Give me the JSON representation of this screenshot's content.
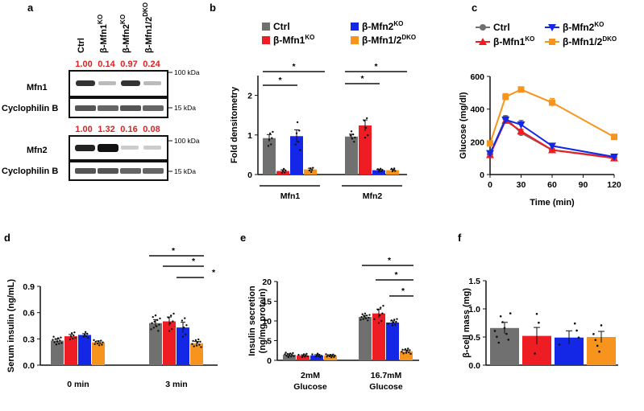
{
  "colors": {
    "ctrl": "#707070",
    "ko1": "#ee1d23",
    "ko2": "#1427e6",
    "dko": "#f7941d",
    "ratio": "#e0201e"
  },
  "legend": {
    "ctrl": "Ctrl",
    "ko1": "β-Mfn1",
    "ko1_sup": "KO",
    "ko2": "β-Mfn2",
    "ko2_sup": "KO",
    "dko": "β-Mfn1/2",
    "dko_sup": "DKO"
  },
  "panel_a": {
    "label": "a",
    "lanes": [
      {
        "text": "Ctrl",
        "sup": ""
      },
      {
        "text": "β-Mfn1",
        "sup": "KO"
      },
      {
        "text": "β-Mfn2",
        "sup": "KO"
      },
      {
        "text": "β-Mfn1/2",
        "sup": "DKO"
      }
    ],
    "mfn1_ratios": [
      "1.00",
      "0.14",
      "0.97",
      "0.24"
    ],
    "mfn2_ratios": [
      "1.00",
      "1.32",
      "0.16",
      "0.08"
    ],
    "rows": [
      "Mfn1",
      "Cyclophilin B",
      "Mfn2",
      "Cyclophilin B"
    ],
    "markers": [
      "100 kDa",
      "15 kDa",
      "100 kDa",
      "15 kDa"
    ]
  },
  "chart_data": [
    {
      "panel": "b",
      "type": "bar",
      "ylabel": "Fold densitometry",
      "ylim": [
        0,
        2.5
      ],
      "yticks": [
        "0",
        "1",
        "2"
      ],
      "groups": [
        "Mfn1",
        "Mfn2"
      ],
      "series": [
        {
          "key": "ctrl",
          "values": [
            0.92,
            0.96
          ],
          "err": [
            0.09,
            0.06
          ]
        },
        {
          "key": "ko1",
          "values": [
            0.09,
            1.24
          ],
          "err": [
            0.03,
            0.14
          ]
        },
        {
          "key": "ko2",
          "values": [
            0.97,
            0.11
          ],
          "err": [
            0.16,
            0.02
          ]
        },
        {
          "key": "dko",
          "values": [
            0.13,
            0.11
          ],
          "err": [
            0.03,
            0.02
          ]
        }
      ],
      "sig": [
        "*",
        "*",
        "*",
        "*"
      ]
    },
    {
      "panel": "c",
      "type": "line",
      "xlabel": "Time (min)",
      "ylabel": "Glucose (mg/dl)",
      "x": [
        0,
        15,
        30,
        60,
        120
      ],
      "xticks": [
        "0",
        "30",
        "60",
        "90",
        "120"
      ],
      "ylim": [
        0,
        600
      ],
      "yticks": [
        "0",
        "200",
        "400",
        "600"
      ],
      "series": [
        {
          "key": "ctrl",
          "values": [
            125,
            345,
            255,
            150,
            105
          ],
          "err": [
            8,
            15,
            12,
            8,
            8
          ]
        },
        {
          "key": "ko1",
          "values": [
            120,
            330,
            265,
            150,
            100
          ],
          "err": [
            8,
            15,
            12,
            8,
            6
          ]
        },
        {
          "key": "ko2",
          "values": [
            130,
            335,
            305,
            175,
            108
          ],
          "err": [
            8,
            18,
            25,
            15,
            8
          ]
        },
        {
          "key": "dko",
          "values": [
            190,
            475,
            520,
            440,
            230
          ],
          "err": [
            10,
            20,
            15,
            25,
            15
          ]
        }
      ]
    },
    {
      "panel": "d",
      "type": "bar",
      "ylabel": "Serum insulin (ng/mL)",
      "ylim": [
        0,
        0.9
      ],
      "yticks": [
        "0.0",
        "0.3",
        "0.6",
        "0.9"
      ],
      "groups": [
        "0 min",
        "3 min"
      ],
      "series": [
        {
          "key": "ctrl",
          "values": [
            0.28,
            0.48
          ],
          "err": [
            0.02,
            0.04
          ]
        },
        {
          "key": "ko1",
          "values": [
            0.33,
            0.5
          ],
          "err": [
            0.02,
            0.05
          ]
        },
        {
          "key": "ko2",
          "values": [
            0.345,
            0.43
          ],
          "err": [
            0.015,
            0.06
          ]
        },
        {
          "key": "dko",
          "values": [
            0.26,
            0.25
          ],
          "err": [
            0.015,
            0.02
          ]
        }
      ],
      "sig": [
        "*",
        "*",
        "*"
      ]
    },
    {
      "panel": "e",
      "type": "bar",
      "ylabel": "Insulin secretion",
      "ylabel2": "(ng/mg protein)",
      "ylim": [
        0,
        20
      ],
      "yticks": [
        "0",
        "5",
        "10",
        "15",
        "20"
      ],
      "groups": [
        "2mM",
        "16.7mM"
      ],
      "groups2": [
        "Glucose",
        "Glucose"
      ],
      "series": [
        {
          "key": "ctrl",
          "values": [
            1.4,
            11.0
          ],
          "err": [
            0.25,
            0.4
          ]
        },
        {
          "key": "ko1",
          "values": [
            1.2,
            11.9
          ],
          "err": [
            0.2,
            1.1
          ]
        },
        {
          "key": "ko2",
          "values": [
            1.25,
            9.6
          ],
          "err": [
            0.2,
            0.4
          ]
        },
        {
          "key": "dko",
          "values": [
            1.2,
            2.3
          ],
          "err": [
            0.2,
            0.3
          ]
        }
      ],
      "sig": [
        "*",
        "*",
        "*"
      ]
    },
    {
      "panel": "f",
      "type": "bar",
      "ylabel": "β-cell mass (mg)",
      "ylim": [
        0,
        1.5
      ],
      "yticks": [
        "0.0",
        "0.5",
        "1.0",
        "1.5"
      ],
      "values": [
        0.66,
        0.52,
        0.49,
        0.5
      ],
      "err": [
        0.1,
        0.15,
        0.12,
        0.1
      ],
      "keys": [
        "ctrl",
        "ko1",
        "ko2",
        "dko"
      ]
    }
  ]
}
